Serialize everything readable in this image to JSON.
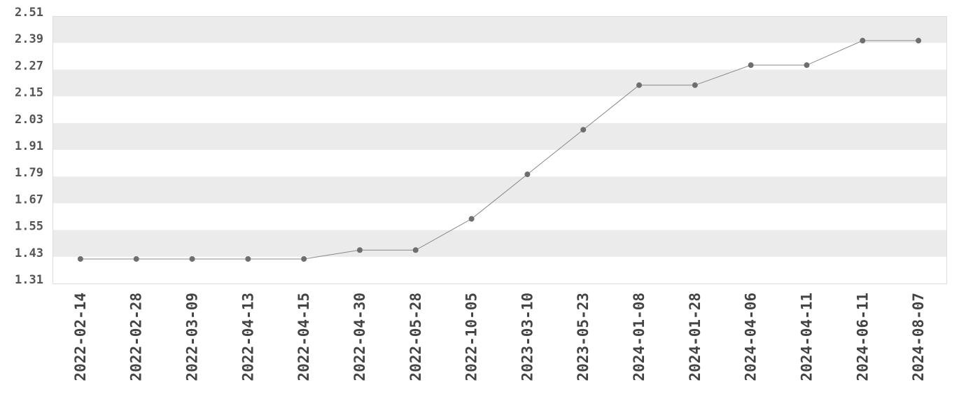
{
  "chart_data": {
    "type": "line",
    "title": "",
    "xlabel": "",
    "ylabel": "",
    "categories": [
      "2022-02-14",
      "2022-02-28",
      "2022-03-09",
      "2022-04-13",
      "2022-04-15",
      "2022-04-30",
      "2022-05-28",
      "2022-10-05",
      "2023-03-10",
      "2023-05-23",
      "2024-01-08",
      "2024-01-28",
      "2024-04-06",
      "2024-04-11",
      "2024-06-11",
      "2024-08-07"
    ],
    "values": [
      1.42,
      1.42,
      1.42,
      1.42,
      1.42,
      1.46,
      1.46,
      1.6,
      1.8,
      2.0,
      2.2,
      2.2,
      2.29,
      2.29,
      2.4,
      2.4
    ],
    "ylim": [
      1.31,
      2.51
    ],
    "yticks": [
      "2.51",
      "2.39",
      "2.27",
      "2.15",
      "2.03",
      "1.91",
      "1.79",
      "1.67",
      "1.55",
      "1.43",
      "1.31"
    ],
    "grid": "alternating horizontal bands",
    "colors": {
      "line": "#888888",
      "marker": "#6e6e6e",
      "band": "#ebebeb",
      "border": "#dddddd"
    }
  }
}
